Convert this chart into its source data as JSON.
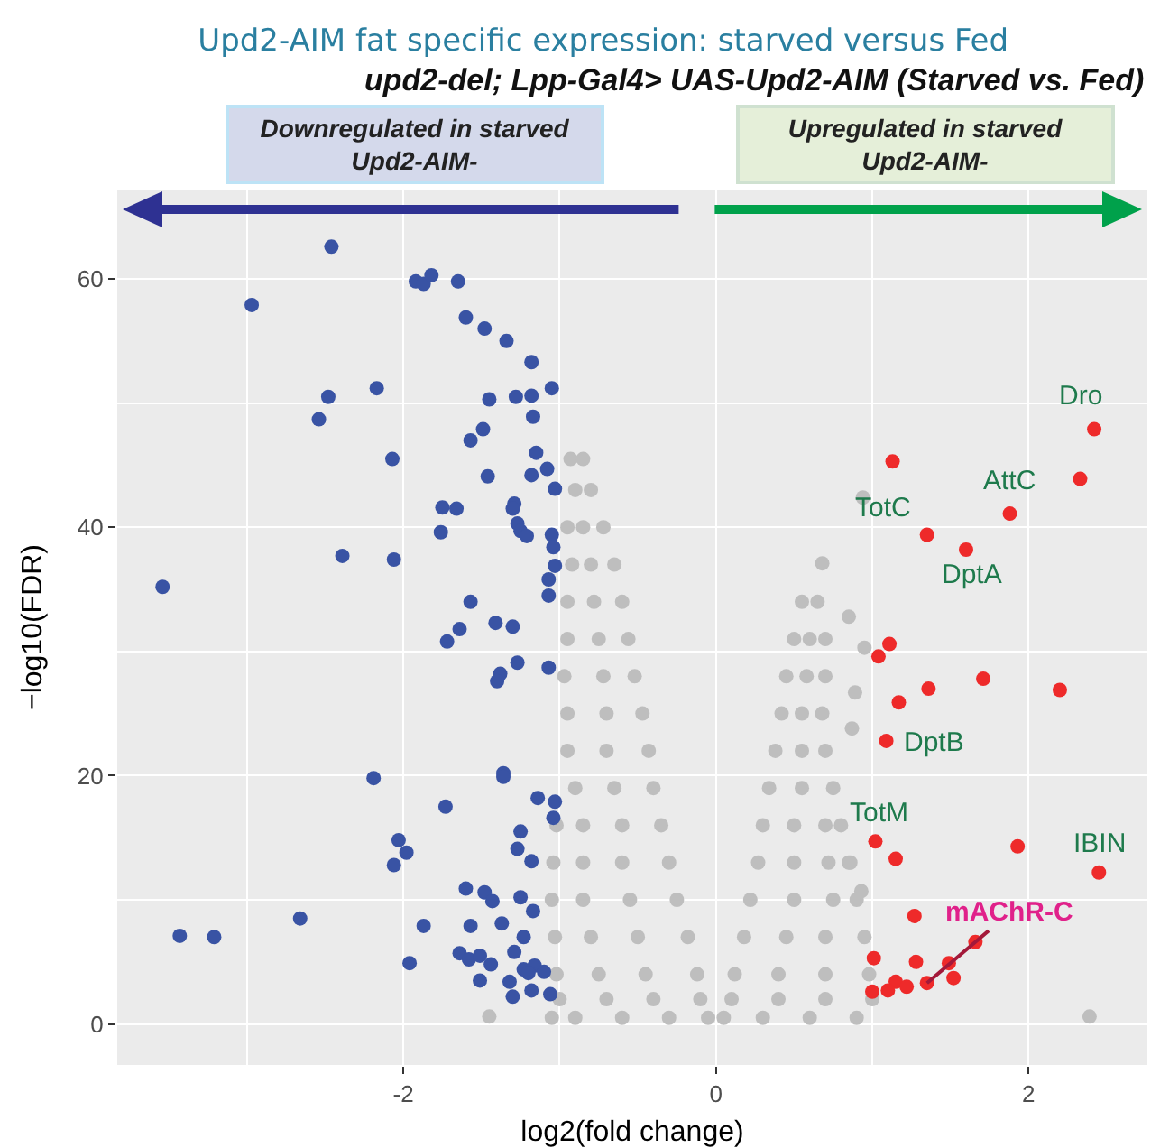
{
  "chart_data": {
    "type": "scatter",
    "title": "Upd2-AIM fat specific expression: starved versus Fed",
    "subtitle": "upd2-del; Lpp-Gal4> UAS-Upd2-AIM (Starved vs. Fed)",
    "xlabel": "log2(fold change)",
    "ylabel": "−log10(FDR)",
    "xlim": [
      -3.83,
      2.76
    ],
    "ylim": [
      -3.3,
      67.2
    ],
    "xticks": [
      {
        "value": -3,
        "label": null
      },
      -2,
      {
        "value": -1,
        "label": null
      },
      0,
      {
        "value": 1,
        "label": null
      },
      2
    ],
    "yticks": [
      0,
      {
        "value": 10,
        "label": null
      },
      20,
      {
        "value": 30,
        "label": null
      },
      40,
      {
        "value": 50,
        "label": null
      },
      60
    ],
    "grid": true,
    "legend": false,
    "marker": "circle",
    "series": [
      {
        "color": "#bebebe",
        "x": [
          -0.05,
          -0.3,
          -0.6,
          -0.9,
          -1.05,
          0.05,
          0.3,
          0.6,
          0.9,
          -0.1,
          -0.4,
          -0.7,
          -1.0,
          -0.12,
          -0.45,
          -0.75,
          -1.02,
          -0.18,
          -0.5,
          -0.8,
          -1.03,
          -0.25,
          -0.55,
          -0.85,
          -1.05,
          -0.3,
          -0.6,
          -0.85,
          -1.04,
          -0.35,
          -0.6,
          -0.85,
          -1.02,
          -0.4,
          -0.65,
          -0.9,
          -0.43,
          -0.7,
          -0.95,
          -0.47,
          -0.7,
          -0.95,
          -0.52,
          -0.72,
          -0.97,
          -0.56,
          -0.75,
          -0.95,
          -0.6,
          -0.78,
          -0.95,
          -0.65,
          -0.8,
          -0.92,
          -0.72,
          -0.85,
          -0.95,
          -0.8,
          -0.9,
          -0.93,
          -0.85,
          0.1,
          0.4,
          0.7,
          1.0,
          0.12,
          0.4,
          0.7,
          0.98,
          0.18,
          0.45,
          0.7,
          0.95,
          0.22,
          0.5,
          0.75,
          0.9,
          0.27,
          0.5,
          0.72,
          0.85,
          0.3,
          0.5,
          0.7,
          0.8,
          0.34,
          0.55,
          0.75,
          0.38,
          0.55,
          0.7,
          0.42,
          0.55,
          0.68,
          0.45,
          0.58,
          0.7,
          0.5,
          0.6,
          0.7,
          0.55,
          0.65,
          0.68,
          0.94,
          0.85,
          0.95,
          0.89,
          0.87,
          0.86,
          0.93,
          2.39,
          -1.45
        ],
        "values": [
          0.5,
          0.5,
          0.5,
          0.5,
          0.5,
          0.5,
          0.5,
          0.5,
          0.5,
          2,
          2,
          2,
          2,
          4,
          4,
          4,
          4,
          7,
          7,
          7,
          7,
          10,
          10,
          10,
          10,
          13,
          13,
          13,
          13,
          16,
          16,
          16,
          16,
          19,
          19,
          19,
          22,
          22,
          22,
          25,
          25,
          25,
          28,
          28,
          28,
          31,
          31,
          31,
          34,
          34,
          34,
          37,
          37,
          37,
          40,
          40,
          40,
          43,
          43,
          45.5,
          45.5,
          2,
          2,
          2,
          2,
          4,
          4,
          4,
          4,
          7,
          7,
          7,
          7,
          10,
          10,
          10,
          10,
          13,
          13,
          13,
          13,
          16,
          16,
          16,
          16,
          19,
          19,
          19,
          22,
          22,
          22,
          25,
          25,
          25,
          28,
          28,
          28,
          31,
          31,
          31,
          34,
          34,
          37.1,
          42.4,
          32.8,
          30.3,
          26.7,
          23.8,
          13.0,
          10.7,
          0.6,
          0.6
        ]
      },
      {
        "color": "#3953a4",
        "x": [
          -2.46,
          -1.92,
          -1.87,
          -1.82,
          -1.65,
          -2.97,
          -1.6,
          -1.48,
          -1.34,
          -1.18,
          -2.48,
          -2.17,
          -1.45,
          -1.28,
          -1.18,
          -1.05,
          -2.54,
          -1.17,
          -1.49,
          -1.57,
          -2.07,
          -1.15,
          -1.08,
          -1.46,
          -1.18,
          -1.03,
          -1.75,
          -1.66,
          -1.29,
          -1.3,
          -1.76,
          -1.27,
          -1.25,
          -1.21,
          -1.05,
          -1.04,
          -2.39,
          -2.06,
          -1.03,
          -3.54,
          -1.07,
          -1.07,
          -1.57,
          -1.64,
          -1.72,
          -1.41,
          -1.3,
          -1.27,
          -1.07,
          -1.38,
          -1.4,
          -2.19,
          -1.36,
          -1.36,
          -1.14,
          -1.03,
          -1.04,
          -1.73,
          -2.03,
          -1.98,
          -2.06,
          -1.25,
          -1.27,
          -1.18,
          -1.6,
          -1.48,
          -1.43,
          -1.25,
          -1.17,
          -2.66,
          -3.43,
          -3.21,
          -1.87,
          -1.57,
          -1.37,
          -1.23,
          -1.96,
          -1.64,
          -1.58,
          -1.51,
          -1.44,
          -1.29,
          -1.51,
          -1.32,
          -1.3,
          -1.18,
          -1.06,
          -1.23,
          -1.16,
          -1.1,
          -1.2
        ],
        "values": [
          62.6,
          59.8,
          59.6,
          60.3,
          59.8,
          57.9,
          56.9,
          56.0,
          55.0,
          53.3,
          50.5,
          51.2,
          50.3,
          50.5,
          50.6,
          51.2,
          48.7,
          48.9,
          47.9,
          47.0,
          45.5,
          46.0,
          44.7,
          44.1,
          44.2,
          43.1,
          41.6,
          41.5,
          41.9,
          41.5,
          39.6,
          40.3,
          39.7,
          39.3,
          39.4,
          38.4,
          37.7,
          37.4,
          36.9,
          35.2,
          35.8,
          34.5,
          34.0,
          31.8,
          30.8,
          32.3,
          32.0,
          29.1,
          28.7,
          28.2,
          27.6,
          19.8,
          20.2,
          19.9,
          18.2,
          17.9,
          16.6,
          17.5,
          14.8,
          13.8,
          12.8,
          15.5,
          14.1,
          13.1,
          10.9,
          10.6,
          9.9,
          10.2,
          9.1,
          8.5,
          7.1,
          7.0,
          7.9,
          7.9,
          8.1,
          7.0,
          4.9,
          5.7,
          5.2,
          5.5,
          4.8,
          5.8,
          3.5,
          3.4,
          2.2,
          2.7,
          2.4,
          4.4,
          4.7,
          4.2,
          4.1
        ]
      },
      {
        "color": "#ee2a2a",
        "x": [
          2.42,
          1.13,
          2.33,
          1.88,
          1.35,
          1.6,
          1.11,
          1.04,
          1.71,
          2.2,
          1.36,
          1.17,
          1.09,
          1.02,
          1.15,
          1.93,
          2.45,
          1.27,
          1.66,
          1.28,
          1.49,
          1.52,
          1.35,
          1.15,
          1.1,
          1.22,
          1.0,
          1.01
        ],
        "values": [
          47.9,
          45.3,
          43.9,
          41.1,
          39.4,
          38.2,
          30.6,
          29.6,
          27.8,
          26.9,
          27.0,
          25.9,
          22.8,
          14.7,
          13.3,
          14.3,
          12.2,
          8.7,
          6.6,
          5.0,
          4.9,
          3.7,
          3.3,
          3.4,
          2.7,
          3.0,
          2.6,
          5.3
        ]
      }
    ],
    "annotations": [
      "Downregulated in starved\nUpd2-AIM-",
      "Upregulated in starved\nUpd2-AIM-",
      {
        "text": "Dro",
        "x": 2.42,
        "y": 47.9
      },
      {
        "text": "AttC",
        "x": 1.88,
        "y": 41.1
      },
      {
        "text": "TotC",
        "x": 1.35,
        "y": 39.4
      },
      {
        "text": "DptA",
        "x": 1.6,
        "y": 38.2
      },
      {
        "text": "DptB",
        "x": 1.09,
        "y": 22.8
      },
      {
        "text": "TotM",
        "x": 1.02,
        "y": 14.7
      },
      {
        "text": "IBIN",
        "x": 2.45,
        "y": 12.2
      },
      {
        "text": "mAChR-C",
        "x": 1.35,
        "y": 3.3
      }
    ]
  }
}
